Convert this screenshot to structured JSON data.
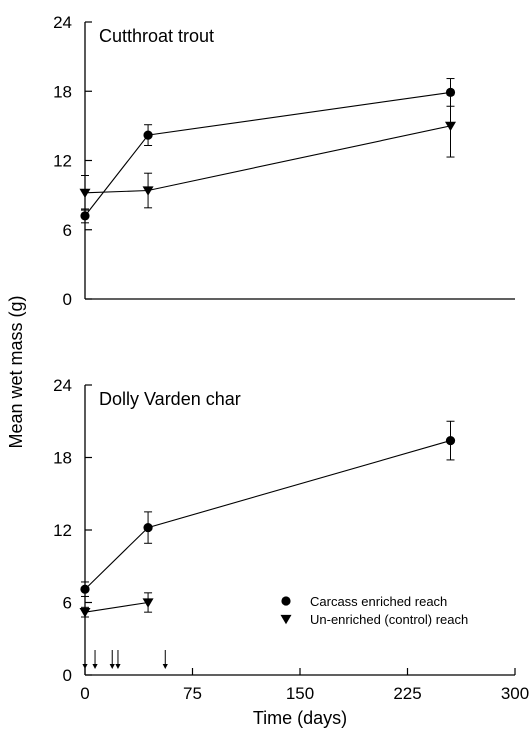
{
  "chart_data": [
    {
      "type": "line",
      "title": "Cutthroat trout",
      "xlabel": "",
      "ylabel": "Mean wet mass (g)",
      "xlim": [
        0,
        300
      ],
      "ylim": [
        0,
        24
      ],
      "yticks": [
        0,
        6,
        12,
        18,
        24
      ],
      "grid": false,
      "series": [
        {
          "name": "Carcass enriched reach",
          "marker": "circle",
          "x": [
            0,
            44,
            255
          ],
          "y": [
            7.2,
            14.2,
            17.9
          ],
          "err": [
            0.6,
            0.9,
            1.2
          ]
        },
        {
          "name": "Un-enriched (control) reach",
          "marker": "triangle-down",
          "x": [
            0,
            44,
            255
          ],
          "y": [
            9.2,
            9.4,
            15.0
          ],
          "err": [
            1.5,
            1.5,
            2.7
          ]
        }
      ]
    },
    {
      "type": "line",
      "title": "Dolly Varden char",
      "xlabel": "Time (days)",
      "ylabel": "Mean wet mass (g)",
      "xlim": [
        0,
        300
      ],
      "ylim": [
        0,
        24
      ],
      "xticks": [
        0,
        75,
        150,
        225,
        300
      ],
      "yticks": [
        0,
        6,
        12,
        18,
        24
      ],
      "grid": false,
      "legend_position": "bottom-right",
      "series": [
        {
          "name": "Carcass enriched reach",
          "marker": "circle",
          "x": [
            0,
            44,
            255
          ],
          "y": [
            7.1,
            12.2,
            19.4
          ],
          "err": [
            0.6,
            1.3,
            1.6
          ]
        },
        {
          "name": "Un-enriched (control) reach",
          "marker": "triangle-down",
          "x": [
            0,
            44
          ],
          "y": [
            5.2,
            6.0
          ],
          "err": [
            0.4,
            0.8
          ]
        }
      ],
      "annotations": {
        "arrow_days": [
          0,
          7,
          19,
          23,
          56
        ]
      }
    }
  ],
  "shared_ylabel": "Mean wet mass (g)",
  "legend": [
    {
      "label": "Carcass enriched reach",
      "marker": "circle"
    },
    {
      "label": "Un-enriched (control) reach",
      "marker": "triangle-down"
    }
  ],
  "colors": {
    "ink": "#000000",
    "background": "#ffffff"
  }
}
